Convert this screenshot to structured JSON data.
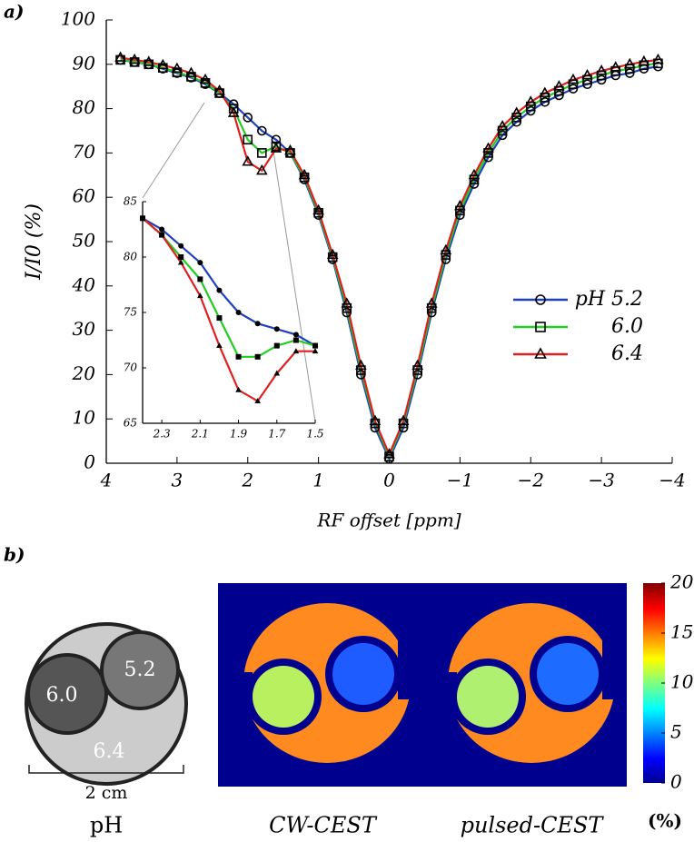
{
  "panel_a_label": "a)",
  "panel_b_label": "b)",
  "chart_data": [
    {
      "type": "line",
      "xlabel": "RF offset [ppm]",
      "ylabel": "I/I0 (%)",
      "xlim": [
        4,
        -4
      ],
      "xticks": [
        4,
        3,
        2,
        1,
        0,
        {
          "value": -1,
          "label": "−1"
        },
        {
          "value": -2,
          "label": "−2"
        },
        {
          "value": -3,
          "label": "−3"
        },
        {
          "value": -4,
          "label": "−4"
        }
      ],
      "ylim": [
        0,
        100
      ],
      "yticks": [
        0,
        10,
        20,
        30,
        40,
        50,
        60,
        70,
        80,
        90,
        100
      ],
      "legend": "right",
      "x": [
        3.8,
        3.6,
        3.4,
        3.2,
        3.0,
        2.8,
        2.6,
        2.4,
        2.2,
        2.0,
        1.8,
        1.6,
        1.4,
        1.2,
        1.0,
        0.8,
        0.6,
        0.4,
        0.2,
        0,
        -0.2,
        -0.4,
        -0.6,
        -0.8,
        -1.0,
        -1.2,
        -1.4,
        -1.6,
        -1.8,
        -2.0,
        -2.2,
        -2.4,
        -2.6,
        -2.8,
        -3.0,
        -3.2,
        -3.4,
        -3.6,
        -3.8
      ],
      "series": [
        {
          "name": "pH 5.2",
          "color": "#1f3fbf",
          "marker": "circle",
          "values": [
            91,
            90.5,
            90,
            89,
            88,
            87,
            85.5,
            83.5,
            81,
            78,
            75,
            73,
            70,
            64,
            56,
            46,
            34,
            20,
            8,
            1,
            8,
            20,
            34,
            46,
            56,
            63,
            69,
            74,
            77,
            79.5,
            81.5,
            83,
            84.5,
            85.5,
            86.5,
            87.5,
            88,
            89,
            89.5
          ]
        },
        {
          "name": "6.0",
          "color": "#22cc22",
          "marker": "square",
          "values": [
            91,
            90.5,
            90,
            89.2,
            88.2,
            87.2,
            85.8,
            83.5,
            80,
            73,
            70,
            71.5,
            70,
            64.5,
            56.5,
            46.5,
            35,
            21,
            9,
            1.5,
            9,
            21,
            35,
            47,
            57,
            64,
            70,
            75,
            78,
            80.5,
            82.5,
            84,
            85.5,
            86.5,
            87.5,
            88.5,
            89,
            89.8,
            90.2
          ]
        },
        {
          "name": "6.4",
          "color": "#e02020",
          "marker": "triangle",
          "values": [
            91.5,
            91,
            90.5,
            89.8,
            89,
            88,
            86.5,
            84,
            79,
            68,
            66,
            71,
            70.5,
            65,
            57,
            47,
            36,
            22,
            9.5,
            2,
            9.5,
            22,
            36,
            48,
            58,
            65,
            71,
            76,
            79,
            81.5,
            83.5,
            85,
            86.5,
            87.5,
            88.5,
            89.3,
            90,
            90.6,
            91
          ]
        }
      ]
    },
    {
      "type": "line",
      "xlim": [
        2.4,
        1.5
      ],
      "xticks": [
        2.3,
        2.1,
        1.9,
        1.7,
        1.5
      ],
      "ylim": [
        65,
        85
      ],
      "yticks": [
        65,
        70,
        75,
        80,
        85
      ],
      "x": [
        2.4,
        2.3,
        2.2,
        2.1,
        2.0,
        1.9,
        1.8,
        1.7,
        1.6,
        1.5
      ],
      "series": [
        {
          "name": "pH 5.2",
          "color": "#1f3fbf",
          "marker": "circle",
          "values": [
            83.5,
            82.5,
            81,
            79.5,
            77,
            75,
            74,
            73.5,
            73,
            72
          ]
        },
        {
          "name": "6.0",
          "color": "#22cc22",
          "marker": "square",
          "values": [
            83.5,
            82,
            80,
            78,
            74.5,
            71,
            71,
            72,
            72.5,
            72
          ]
        },
        {
          "name": "6.4",
          "color": "#e02020",
          "marker": "triangle",
          "values": [
            83.5,
            82,
            79.5,
            76.5,
            72,
            68,
            67,
            69.5,
            71.5,
            71.5
          ]
        }
      ]
    }
  ],
  "phantom": {
    "labels": [
      "6.0",
      "5.2",
      "6.4"
    ],
    "scale": "2 cm",
    "caption": "pH"
  },
  "maps": {
    "captions": [
      "CW-CEST",
      "pulsed-CEST"
    ]
  },
  "colorbar": {
    "ylim": [
      0,
      20
    ],
    "yticks": [
      0,
      5,
      10,
      15,
      20
    ],
    "label": "(%)"
  }
}
